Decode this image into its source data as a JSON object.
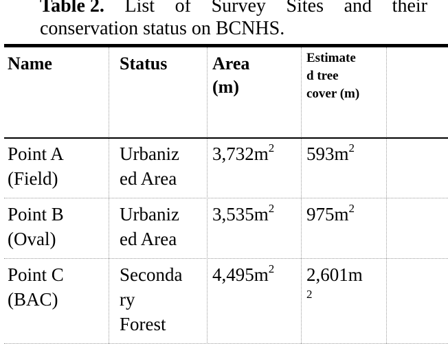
{
  "caption": {
    "label": "Table 2.",
    "line1_words": [
      "List",
      "of",
      "Survey",
      "Sites",
      "and",
      "their"
    ],
    "line2": "conservation status on BCNHS."
  },
  "table": {
    "headers": {
      "name": "Name",
      "status": "Status",
      "area_line1": "Area",
      "area_line2": "(m)",
      "tree_line1": "Estimate",
      "tree_line2": "d tree",
      "tree_line3": "cover (m)"
    },
    "rows": [
      {
        "name_line1": "Point A",
        "name_line2": "(Field)",
        "status_lines": [
          "Urbaniz",
          "ed Area"
        ],
        "area": "3,732m",
        "area_unit_sup": "2",
        "tree": "593m",
        "tree_unit_sup": "2"
      },
      {
        "name_line1": "Point B",
        "name_line2": "(Oval)",
        "status_lines": [
          "Urbaniz",
          "ed Area"
        ],
        "area": "3,535m",
        "area_unit_sup": "2",
        "tree": "975m",
        "tree_unit_sup": "2"
      },
      {
        "name_line1": "Point C",
        "name_line2": "(BAC)",
        "status_lines": [
          "Seconda",
          "ry",
          "Forest"
        ],
        "area": "4,495m",
        "area_unit_sup": "2",
        "tree": "2,601m",
        "tree_unit_sup": "2"
      }
    ]
  }
}
